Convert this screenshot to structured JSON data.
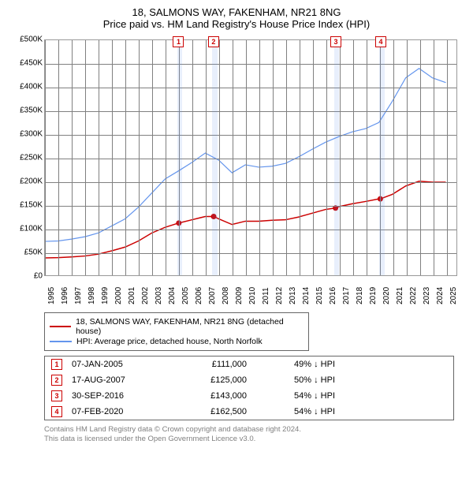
{
  "header": {
    "title": "18, SALMONS WAY, FAKENHAM, NR21 8NG",
    "subtitle": "Price paid vs. HM Land Registry's House Price Index (HPI)"
  },
  "chart": {
    "type": "line",
    "background_color": "#ffffff",
    "grid_color": "#808080",
    "border_color": "#999999",
    "xlim": [
      1995,
      2025.8
    ],
    "ylim": [
      0,
      500000
    ],
    "ytick_step": 50000,
    "yticks_labels": [
      "£0",
      "£50K",
      "£100K",
      "£150K",
      "£200K",
      "£250K",
      "£300K",
      "£350K",
      "£400K",
      "£450K",
      "£500K"
    ],
    "xticks": [
      1995,
      1996,
      1997,
      1998,
      1999,
      2000,
      2001,
      2002,
      2003,
      2004,
      2005,
      2006,
      2007,
      2008,
      2009,
      2010,
      2011,
      2012,
      2013,
      2014,
      2015,
      2016,
      2017,
      2018,
      2019,
      2020,
      2021,
      2022,
      2023,
      2024,
      2025
    ],
    "label_fontsize": 10,
    "series": [
      {
        "id": "prop",
        "label": "18, SALMONS WAY, FAKENHAM, NR21 8NG (detached house)",
        "color": "#cc0000",
        "line_width": 1.5,
        "points": [
          [
            1995,
            37000
          ],
          [
            1996,
            37500
          ],
          [
            1997,
            39000
          ],
          [
            1998,
            41000
          ],
          [
            1999,
            45000
          ],
          [
            2000,
            52000
          ],
          [
            2001,
            60000
          ],
          [
            2002,
            73000
          ],
          [
            2003,
            90000
          ],
          [
            2004,
            102000
          ],
          [
            2005,
            111000
          ],
          [
            2006,
            118000
          ],
          [
            2007,
            125000
          ],
          [
            2007.63,
            125000
          ],
          [
            2008,
            120000
          ],
          [
            2009,
            108000
          ],
          [
            2010,
            115000
          ],
          [
            2011,
            115000
          ],
          [
            2012,
            117000
          ],
          [
            2013,
            118000
          ],
          [
            2014,
            124000
          ],
          [
            2015,
            132000
          ],
          [
            2016,
            140000
          ],
          [
            2016.75,
            143000
          ],
          [
            2017,
            146000
          ],
          [
            2018,
            152000
          ],
          [
            2019,
            157000
          ],
          [
            2020,
            162500
          ],
          [
            2020.1,
            162500
          ],
          [
            2021,
            172000
          ],
          [
            2022,
            190000
          ],
          [
            2023,
            200000
          ],
          [
            2024,
            198000
          ],
          [
            2025,
            198000
          ]
        ]
      },
      {
        "id": "hpi",
        "label": "HPI: Average price, detached house, North Norfolk",
        "color": "#6495ed",
        "line_width": 1.2,
        "points": [
          [
            1995,
            72000
          ],
          [
            1996,
            73000
          ],
          [
            1997,
            77000
          ],
          [
            1998,
            82000
          ],
          [
            1999,
            90000
          ],
          [
            2000,
            105000
          ],
          [
            2001,
            120000
          ],
          [
            2002,
            145000
          ],
          [
            2003,
            175000
          ],
          [
            2004,
            205000
          ],
          [
            2005,
            222000
          ],
          [
            2006,
            240000
          ],
          [
            2007,
            260000
          ],
          [
            2008,
            245000
          ],
          [
            2009,
            218000
          ],
          [
            2010,
            235000
          ],
          [
            2011,
            230000
          ],
          [
            2012,
            232000
          ],
          [
            2013,
            238000
          ],
          [
            2014,
            252000
          ],
          [
            2015,
            268000
          ],
          [
            2016,
            283000
          ],
          [
            2017,
            295000
          ],
          [
            2018,
            305000
          ],
          [
            2019,
            312000
          ],
          [
            2020,
            325000
          ],
          [
            2021,
            370000
          ],
          [
            2022,
            420000
          ],
          [
            2023,
            440000
          ],
          [
            2024,
            420000
          ],
          [
            2025,
            410000
          ]
        ]
      }
    ],
    "markers": [
      {
        "n": "1",
        "x": 2005.02,
        "y": 111000,
        "band_start": 2004.85,
        "band_end": 2005.25
      },
      {
        "n": "2",
        "x": 2007.63,
        "y": 125000,
        "band_start": 2007.45,
        "band_end": 2007.85
      },
      {
        "n": "3",
        "x": 2016.75,
        "y": 143000,
        "band_start": 2016.55,
        "band_end": 2016.95
      },
      {
        "n": "4",
        "x": 2020.1,
        "y": 162500,
        "band_start": 2019.92,
        "band_end": 2020.32
      }
    ]
  },
  "legend": {
    "items": [
      {
        "color": "#cc0000",
        "label": "18, SALMONS WAY, FAKENHAM, NR21 8NG (detached house)"
      },
      {
        "color": "#6495ed",
        "label": "HPI: Average price, detached house, North Norfolk"
      }
    ]
  },
  "transactions": [
    {
      "n": "1",
      "date": "07-JAN-2005",
      "price": "£111,000",
      "rel": "49% ↓ HPI"
    },
    {
      "n": "2",
      "date": "17-AUG-2007",
      "price": "£125,000",
      "rel": "50% ↓ HPI"
    },
    {
      "n": "3",
      "date": "30-SEP-2016",
      "price": "£143,000",
      "rel": "54% ↓ HPI"
    },
    {
      "n": "4",
      "date": "07-FEB-2020",
      "price": "£162,500",
      "rel": "54% ↓ HPI"
    }
  ],
  "footnote": {
    "line1": "Contains HM Land Registry data © Crown copyright and database right 2024.",
    "line2": "This data is licensed under the Open Government Licence v3.0."
  }
}
